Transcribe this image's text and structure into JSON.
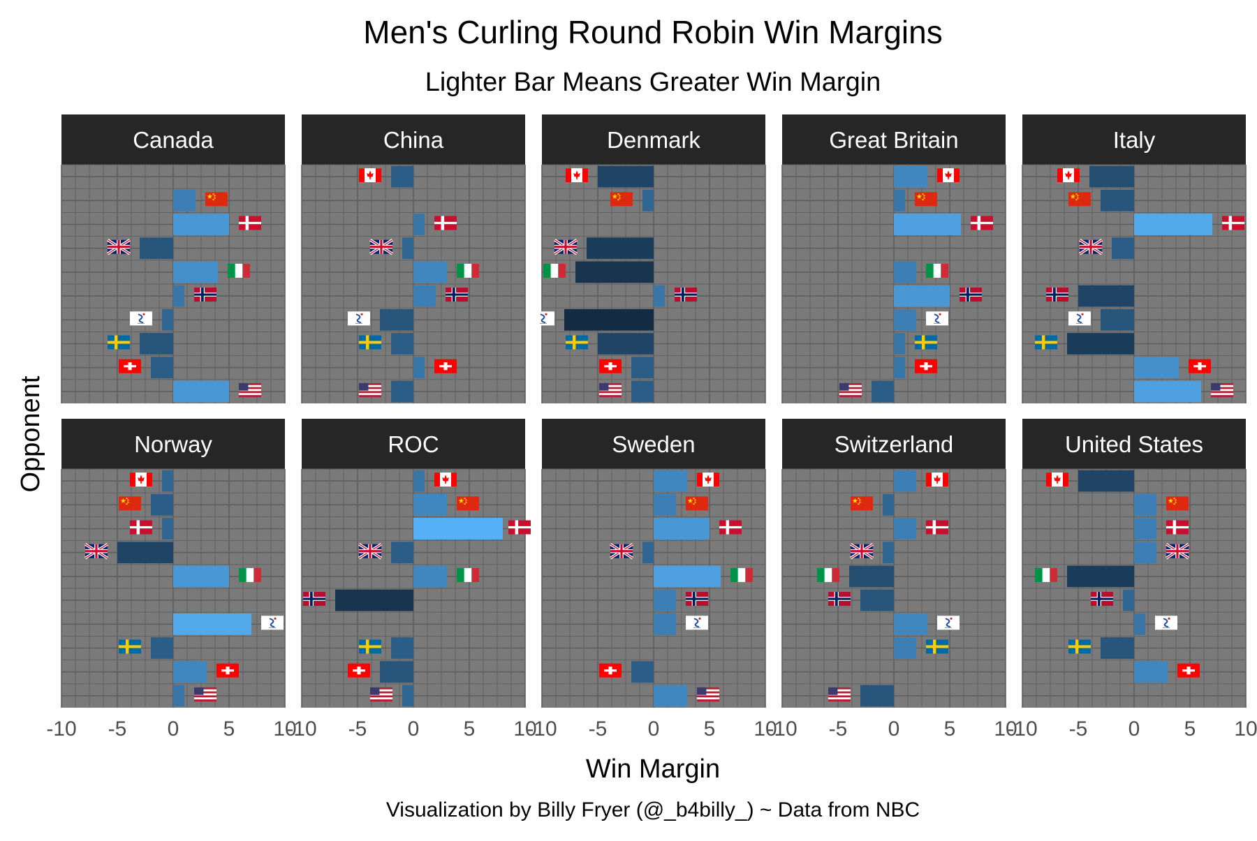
{
  "chart_data": {
    "type": "bar",
    "title": "Men's Curling Round Robin Win Margins",
    "subtitle": "Lighter Bar Means Greater Win Margin",
    "xlabel": "Win Margin",
    "ylabel": "Opponent",
    "caption": "Visualization by Billy Fryer (@_b4billy_) ~ Data from NBC",
    "xlim": [
      -10,
      10
    ],
    "x_ticks": [
      "-10",
      "-5",
      "0",
      "5",
      "10"
    ],
    "opponent_order": [
      "United States",
      "Switzerland",
      "Sweden",
      "ROC",
      "Norway",
      "Italy",
      "Great Britain",
      "Denmark",
      "China",
      "Canada"
    ],
    "grid": true,
    "panel_background": "#7a7a7a",
    "strip_background": "#262626",
    "color_scale": {
      "low": "#132b43",
      "high": "#56b1f7"
    },
    "panels": [
      {
        "team": "Canada",
        "margins": [
          5,
          -2,
          -3,
          -1,
          1,
          4,
          -3,
          5,
          2,
          null
        ]
      },
      {
        "team": "China",
        "margins": [
          -2,
          1,
          -2,
          -3,
          2,
          3,
          -1,
          1,
          null,
          -2
        ]
      },
      {
        "team": "Denmark",
        "margins": [
          -2,
          -2,
          -5,
          -8,
          1,
          -7,
          -6,
          null,
          -1,
          -5
        ]
      },
      {
        "team": "Great Britain",
        "margins": [
          -2,
          1,
          1,
          2,
          5,
          2,
          null,
          6,
          1,
          3
        ]
      },
      {
        "team": "Italy",
        "margins": [
          6,
          4,
          -6,
          -3,
          -5,
          null,
          -2,
          7,
          -3,
          -4
        ]
      },
      {
        "team": "Norway",
        "margins": [
          1,
          3,
          -2,
          7,
          null,
          5,
          -5,
          -1,
          -2,
          -1
        ]
      },
      {
        "team": "ROC",
        "margins": [
          -1,
          -3,
          -2,
          null,
          -7,
          3,
          -2,
          8,
          3,
          1
        ]
      },
      {
        "team": "Sweden",
        "margins": [
          3,
          -2,
          null,
          2,
          2,
          6,
          -1,
          5,
          2,
          3
        ]
      },
      {
        "team": "Switzerland",
        "margins": [
          -3,
          null,
          2,
          3,
          -3,
          -4,
          -1,
          2,
          -1,
          2
        ]
      },
      {
        "team": "United States",
        "margins": [
          null,
          3,
          -3,
          1,
          -1,
          -6,
          2,
          2,
          2,
          -5
        ]
      }
    ],
    "flag_icons": {
      "United States": "us-flag-icon",
      "Switzerland": "switzerland-flag-icon",
      "Sweden": "sweden-flag-icon",
      "ROC": "roc-flag-icon",
      "Norway": "norway-flag-icon",
      "Italy": "italy-flag-icon",
      "Great Britain": "great-britain-flag-icon",
      "Denmark": "denmark-flag-icon",
      "China": "china-flag-icon",
      "Canada": "canada-flag-icon"
    }
  }
}
